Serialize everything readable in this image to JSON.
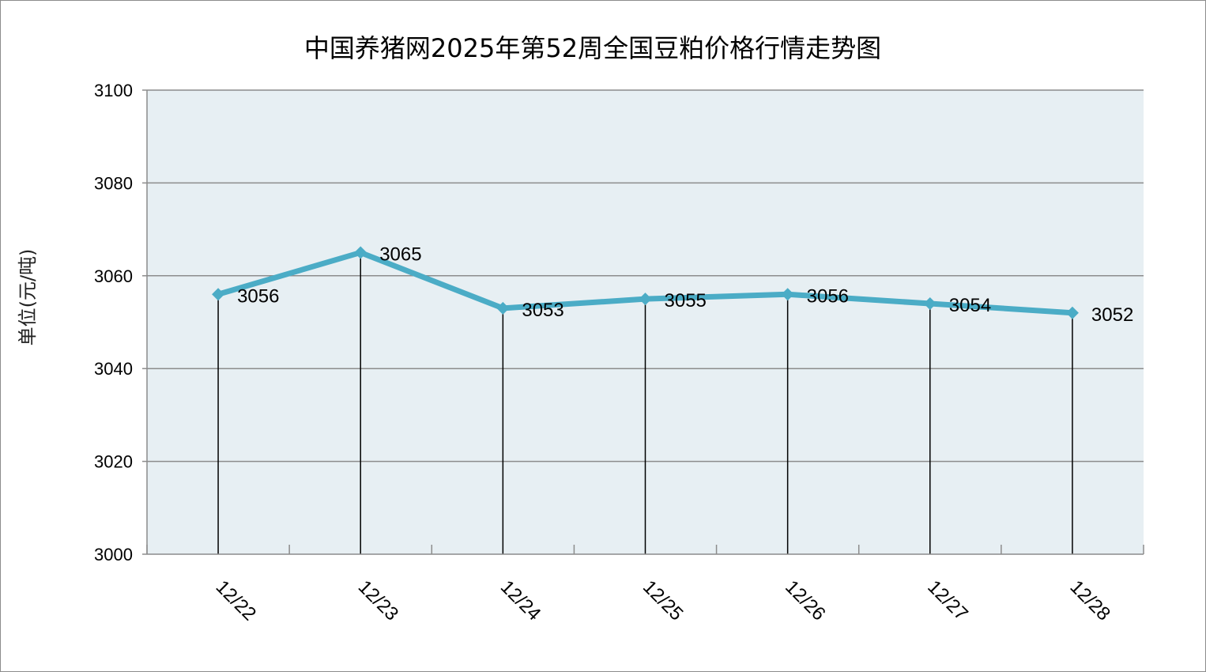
{
  "chart_data": {
    "type": "line",
    "title": "中国养猪网2025年第52周全国豆粕价格行情走势图",
    "xlabel": "",
    "ylabel": "单位(元/吨)",
    "categories": [
      "12/22",
      "12/23",
      "12/24",
      "12/25",
      "12/26",
      "12/27",
      "12/28"
    ],
    "series": [
      {
        "values": [
          3056,
          3065,
          3053,
          3055,
          3056,
          3054,
          3052
        ]
      }
    ],
    "data_labels": [
      "3056",
      "3065",
      "3053",
      "3055",
      "3056",
      "3054",
      "3052"
    ],
    "ylim": [
      3000,
      3100
    ],
    "yticks": [
      "3000",
      "3020",
      "3040",
      "3060",
      "3080",
      "3100"
    ],
    "grid": true,
    "drop_lines": true,
    "colors": {
      "line": "#4bacc6",
      "plot_bg": "#e7eff3",
      "grid": "#8c8c8c",
      "drop_line": "#000000"
    }
  }
}
